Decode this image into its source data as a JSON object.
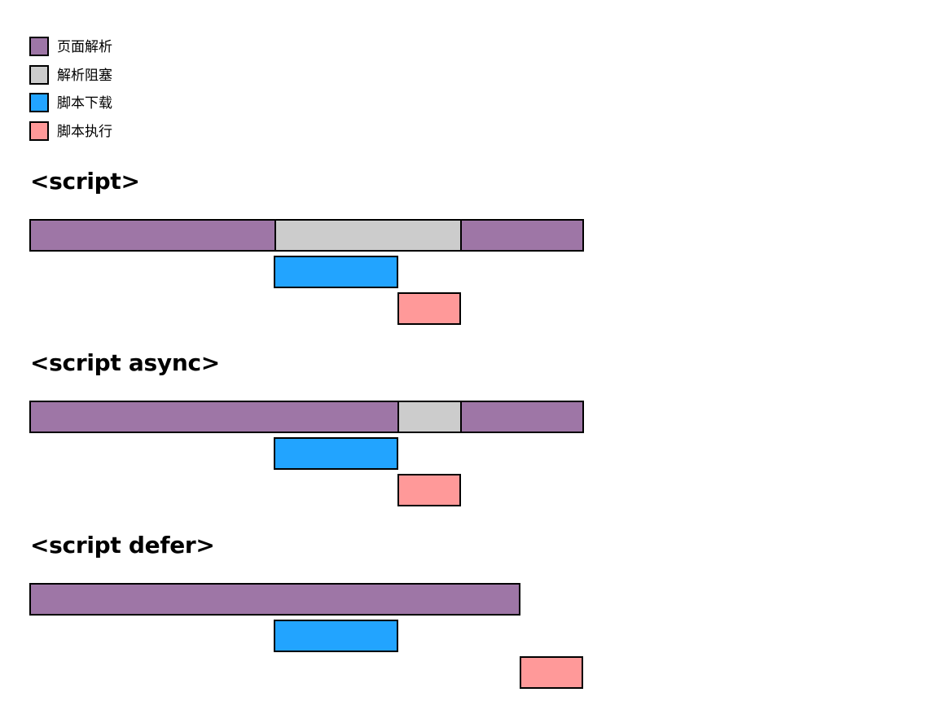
{
  "legend": [
    {
      "key": "parse",
      "label": "页面解析",
      "color": "#9E76A6"
    },
    {
      "key": "block",
      "label": "解析阻塞",
      "color": "#CCCCCC"
    },
    {
      "key": "download",
      "label": "脚本下载",
      "color": "#22A4FF"
    },
    {
      "key": "execute",
      "label": "脚本执行",
      "color": "#FF9999"
    }
  ],
  "sections": [
    {
      "title": "<script>"
    },
    {
      "title": "<script async>"
    },
    {
      "title": "<script defer>"
    }
  ]
}
